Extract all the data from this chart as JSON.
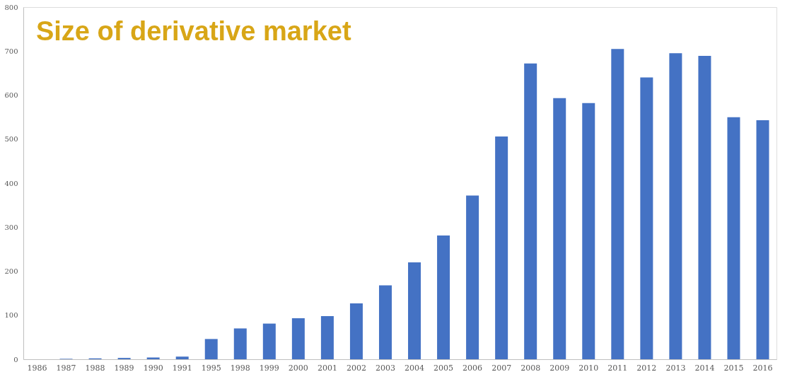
{
  "chart_data": {
    "type": "bar",
    "title": "Size of derivative market",
    "categories": [
      "1986",
      "1987",
      "1988",
      "1989",
      "1990",
      "1991",
      "1995",
      "1998",
      "1999",
      "2000",
      "2001",
      "2002",
      "2003",
      "2004",
      "2005",
      "2006",
      "2007",
      "2008",
      "2009",
      "2010",
      "2011",
      "2012",
      "2013",
      "2014",
      "2015",
      "2016"
    ],
    "values": [
      0,
      1,
      2,
      3,
      4,
      6,
      46,
      70,
      81,
      93,
      98,
      127,
      168,
      220,
      281,
      372,
      506,
      672,
      593,
      582,
      705,
      640,
      695,
      689,
      550,
      543
    ],
    "color": "#4472c4",
    "ylim": [
      0,
      800
    ],
    "yticks": [
      0,
      100,
      200,
      300,
      400,
      500,
      600,
      700,
      800
    ],
    "grid": false
  }
}
